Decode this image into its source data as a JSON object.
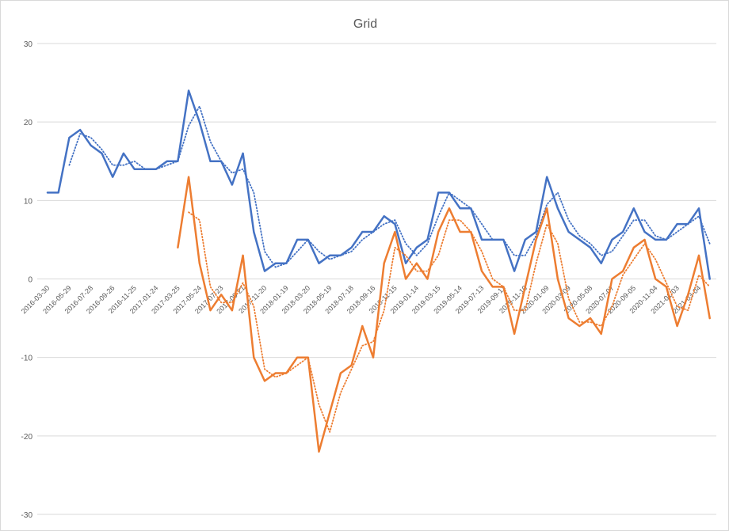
{
  "chart_data": {
    "type": "line",
    "title": "Grid",
    "xlabel": "",
    "ylabel": "",
    "ylim": [
      -30,
      30
    ],
    "yticks": [
      30,
      20,
      10,
      0,
      -10,
      -20,
      -30
    ],
    "grid": true,
    "legend": "none",
    "x_tick_labels": [
      "2016-03-30",
      "2016-05-29",
      "2016-07-28",
      "2016-09-26",
      "2016-11-25",
      "2017-01-24",
      "2017-03-25",
      "2017-05-24",
      "2017-07-23",
      "2017-09-21",
      "2017-11-20",
      "2018-01-19",
      "2018-03-20",
      "2018-05-19",
      "2018-07-18",
      "2018-09-16",
      "2018-11-15",
      "2019-01-14",
      "2019-03-15",
      "2019-05-14",
      "2019-07-13",
      "2019-09-11",
      "2019-11-10",
      "2020-01-09",
      "2020-03-09",
      "2020-05-08",
      "2020-07-07",
      "2020-09-05",
      "2020-11-04",
      "2021-01-03",
      "2021-03-04"
    ],
    "n_points": 62,
    "series": [
      {
        "color": "#4472C4",
        "style": "solid",
        "start_index": 0,
        "values": [
          11,
          11,
          18,
          19,
          17,
          16,
          13,
          16,
          14,
          14,
          14,
          15,
          15,
          24,
          20,
          15,
          15,
          12,
          16,
          6,
          1,
          2,
          2,
          5,
          5,
          2,
          3,
          3,
          4,
          6,
          6,
          8,
          7,
          2,
          4,
          5,
          11,
          11,
          9,
          9,
          5,
          5,
          5,
          1,
          5,
          6,
          13,
          9,
          6,
          5,
          4,
          2,
          5,
          6,
          9,
          6,
          5,
          5,
          7,
          7,
          9,
          0
        ]
      },
      {
        "color": "#4472C4",
        "style": "dotted",
        "trendline": "moving average (2 periods) of blue series",
        "start_index": 2,
        "values": [
          14.5,
          18.5,
          18,
          16.5,
          14.5,
          14.5,
          15,
          14,
          14,
          14.5,
          15,
          19.5,
          22,
          17.5,
          15,
          13.5,
          14,
          11,
          3.5,
          1.5,
          2,
          3.5,
          5,
          3.5,
          2.5,
          3,
          3.5,
          5,
          6,
          7,
          7.5,
          4.5,
          3,
          4.5,
          8,
          11,
          10,
          9,
          7,
          5,
          5,
          3,
          3,
          5.5,
          9.5,
          11,
          7.5,
          5.5,
          4.5,
          3,
          3.5,
          5.5,
          7.5,
          7.5,
          5.5,
          5,
          6,
          7,
          8,
          4.5
        ]
      },
      {
        "color": "#ED7D31",
        "style": "solid",
        "start_index": 12,
        "values": [
          4,
          13,
          2,
          -4,
          -2,
          -4,
          3,
          -10,
          -13,
          -12,
          -12,
          -10,
          -10,
          -22,
          -17,
          -12,
          -11,
          -6,
          -10,
          2,
          6,
          0,
          2,
          0,
          6,
          9,
          6,
          6,
          1,
          -1,
          -1,
          -7,
          -1,
          5,
          9,
          0,
          -5,
          -6,
          -5,
          -7,
          0,
          1,
          4,
          5,
          0,
          -1,
          -6,
          -2,
          3,
          -5
        ]
      },
      {
        "color": "#ED7D31",
        "style": "dotted",
        "trendline": "moving average (2 periods) of orange series",
        "start_index": 13,
        "values": [
          8.5,
          7.5,
          -1,
          -3,
          -3,
          -0.5,
          -3.5,
          -11.5,
          -12.5,
          -12,
          -11,
          -10,
          -16,
          -19.5,
          -14.5,
          -11.5,
          -8.5,
          -8,
          -4,
          4,
          3,
          1,
          1,
          3,
          7.5,
          7.5,
          6,
          3.5,
          0,
          -1,
          -4,
          -4,
          2,
          7,
          4.5,
          -2.5,
          -5.5,
          -5.5,
          -6,
          -3.5,
          0.5,
          2.5,
          4.5,
          2.5,
          -0.5,
          -3.5,
          -4,
          0.5,
          -1
        ]
      }
    ]
  }
}
